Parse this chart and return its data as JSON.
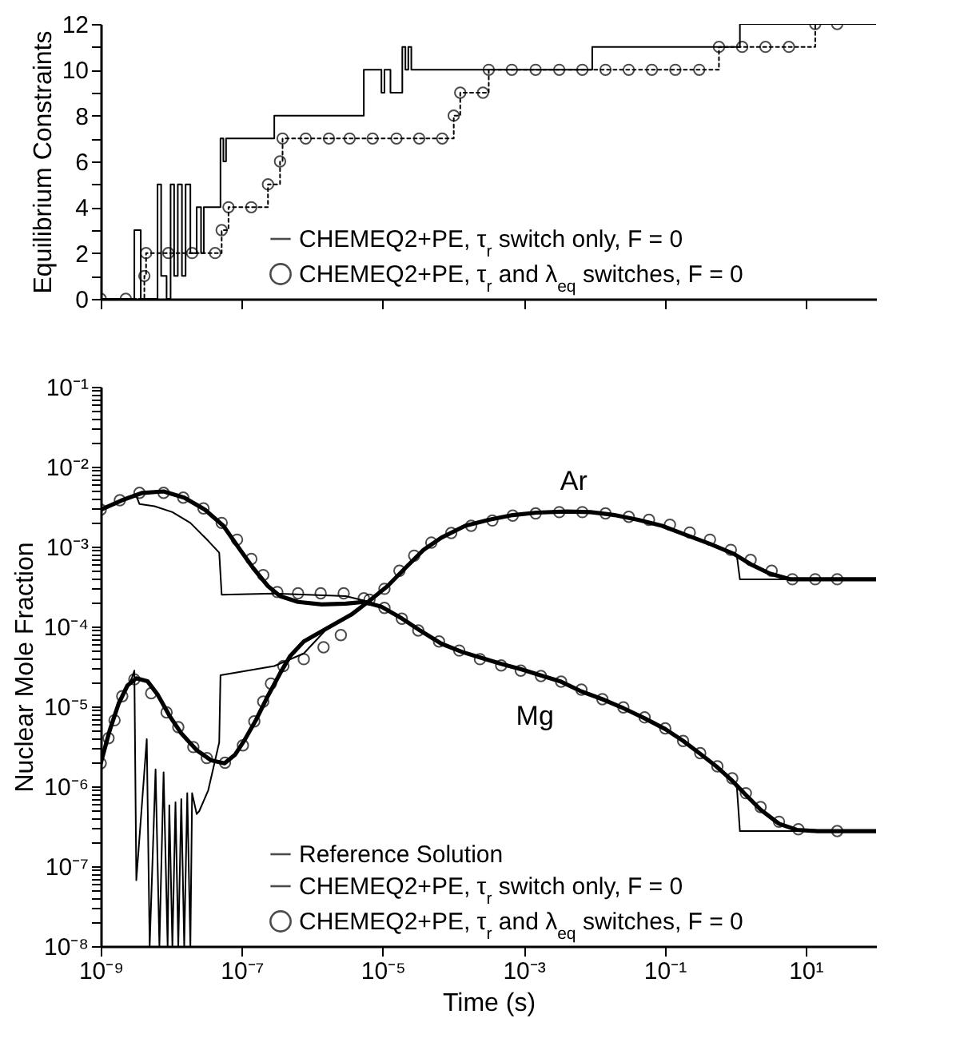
{
  "chart_data": [
    {
      "type": "step",
      "ylabel": "Equilibrium Constraints",
      "log": "x",
      "legend": "bottom right",
      "tick_labels": "y",
      "xlim": [
        1e-09,
        100
      ],
      "xticks": [
        {
          "value": 1e-09,
          "label": null
        },
        {
          "value": 1e-07,
          "label": null
        },
        {
          "value": 1e-05,
          "label": null
        },
        {
          "value": 0.001,
          "label": null
        },
        {
          "value": 0.1,
          "label": null
        },
        {
          "value": 10,
          "label": null
        }
      ],
      "ylim": [
        0,
        12
      ],
      "yticks": [
        0,
        {
          "value": 1,
          "label": null
        },
        2,
        {
          "value": 3,
          "label": null
        },
        4,
        {
          "value": 5,
          "label": null
        },
        6,
        {
          "value": 7,
          "label": null
        },
        8,
        {
          "value": 9,
          "label": null
        },
        10,
        {
          "value": 11,
          "label": null
        },
        12
      ],
      "series": [
        {
          "name": "CHEMEQ2+PE, τ$_{r}$ switch only, F = 0",
          "color": "#000000",
          "line_style": "solid",
          "x": [
            1e-09,
            2.4e-09,
            3e-09,
            3.7e-09,
            6.4e-09,
            7.2e-09,
            8.6e-09,
            9.8e-09,
            1.1e-08,
            1.24e-08,
            1.42e-08,
            1.6e-08,
            1.87e-08,
            2.3e-08,
            2.65e-08,
            2.9e-08,
            4.2e-08,
            5e-08,
            5.5e-08,
            6e-08,
            2.6e-07,
            2.9e-07,
            4.6e-06,
            5.4e-06,
            9.1e-06,
            9.6e-06,
            1.06e-05,
            1.29e-05,
            1.73e-05,
            1.9e-05,
            2.1e-05,
            2.31e-05,
            2.55e-05,
            0.0089,
            0.0094,
            1.06,
            1.17,
            100
          ],
          "values": [
            0,
            0,
            3,
            0,
            5,
            1,
            0,
            5,
            1,
            5,
            1,
            5,
            2,
            4,
            2,
            4,
            4,
            7,
            6,
            7,
            7,
            8,
            8,
            10,
            10,
            9,
            10,
            9,
            9,
            11,
            10,
            11,
            10,
            10,
            11,
            11,
            12,
            12
          ]
        },
        {
          "name": "CHEMEQ2+PE, τ$_{r}$ and λ$_{eq}$ switches, F = 0",
          "color": "#000000",
          "line_style": "dotted",
          "marker": "circle",
          "x": [
            1e-09,
            2.27e-09,
            4.16e-09,
            4.4e-09,
            9.1e-09,
            1.98e-08,
            4.2e-08,
            5.2e-08,
            6.5e-08,
            1.37e-07,
            2.36e-07,
            3.5e-07,
            3.8e-07,
            8.1e-07,
            1.73e-06,
            3.4e-06,
            7.2e-06,
            1.57e-05,
            3.3e-05,
            7e-05,
            0.000102,
            0.000126,
            0.000265,
            0.00032,
            0.00068,
            0.00148,
            0.0032,
            0.0068,
            0.0145,
            0.031,
            0.066,
            0.142,
            0.31,
            0.59,
            1.26,
            2.7,
            5.8,
            13.7,
            28.1
          ],
          "values": [
            0,
            0,
            1,
            2,
            2,
            2,
            2,
            3,
            4,
            4,
            5,
            6,
            7,
            7,
            7,
            7,
            7,
            7,
            7,
            7,
            8,
            9,
            9,
            10,
            10,
            10,
            10,
            10,
            10,
            10,
            10,
            10,
            10,
            11,
            11,
            11,
            11,
            12,
            12
          ]
        }
      ]
    },
    {
      "type": "line",
      "xlabel": "Time (s)",
      "ylabel": "Nuclear Mole Fraction",
      "log": "xy",
      "legend": "bottom right",
      "xlim": [
        1e-09,
        100
      ],
      "xticks": [
        {
          "value": 1e-09,
          "label": "10⁻⁹"
        },
        {
          "value": 1e-07,
          "label": "10⁻⁷"
        },
        {
          "value": 1e-05,
          "label": "10⁻⁵"
        },
        {
          "value": 0.001,
          "label": "10⁻³"
        },
        {
          "value": 0.1,
          "label": "10⁻¹"
        },
        {
          "value": 10,
          "label": "10¹"
        }
      ],
      "ylim": [
        1e-08,
        0.1
      ],
      "yticks": [
        {
          "value": 1e-08,
          "label": "10⁻⁸"
        },
        {
          "value": 2e-08,
          "label": null
        },
        {
          "value": 3e-08,
          "label": null
        },
        {
          "value": 4e-08,
          "label": null
        },
        {
          "value": 5e-08,
          "label": null
        },
        {
          "value": 6e-08,
          "label": null
        },
        {
          "value": 7e-08,
          "label": null
        },
        {
          "value": 8e-08,
          "label": null
        },
        {
          "value": 9e-08,
          "label": null
        },
        {
          "value": 1e-07,
          "label": "10⁻⁷"
        },
        {
          "value": 2e-07,
          "label": null
        },
        {
          "value": 3e-07,
          "label": null
        },
        {
          "value": 4e-07,
          "label": null
        },
        {
          "value": 5e-07,
          "label": null
        },
        {
          "value": 6e-07,
          "label": null
        },
        {
          "value": 7e-07,
          "label": null
        },
        {
          "value": 8e-07,
          "label": null
        },
        {
          "value": 9e-07,
          "label": null
        },
        {
          "value": 1e-06,
          "label": "10⁻⁶"
        },
        {
          "value": 2e-06,
          "label": null
        },
        {
          "value": 3e-06,
          "label": null
        },
        {
          "value": 4e-06,
          "label": null
        },
        {
          "value": 5e-06,
          "label": null
        },
        {
          "value": 6e-06,
          "label": null
        },
        {
          "value": 7e-06,
          "label": null
        },
        {
          "value": 8e-06,
          "label": null
        },
        {
          "value": 9e-06,
          "label": null
        },
        {
          "value": 1e-05,
          "label": "10⁻⁵"
        },
        {
          "value": 2e-05,
          "label": null
        },
        {
          "value": 3e-05,
          "label": null
        },
        {
          "value": 4e-05,
          "label": null
        },
        {
          "value": 5e-05,
          "label": null
        },
        {
          "value": 6e-05,
          "label": null
        },
        {
          "value": 7e-05,
          "label": null
        },
        {
          "value": 8e-05,
          "label": null
        },
        {
          "value": 9e-05,
          "label": null
        },
        {
          "value": 0.0001,
          "label": "10⁻⁴"
        },
        {
          "value": 0.0002,
          "label": null
        },
        {
          "value": 0.0003,
          "label": null
        },
        {
          "value": 0.0004,
          "label": null
        },
        {
          "value": 0.0005,
          "label": null
        },
        {
          "value": 0.0006,
          "label": null
        },
        {
          "value": 0.0007,
          "label": null
        },
        {
          "value": 0.0008,
          "label": null
        },
        {
          "value": 0.0009,
          "label": null
        },
        {
          "value": 0.001,
          "label": "10⁻³"
        },
        {
          "value": 0.002,
          "label": null
        },
        {
          "value": 0.003,
          "label": null
        },
        {
          "value": 0.004,
          "label": null
        },
        {
          "value": 0.005,
          "label": null
        },
        {
          "value": 0.006,
          "label": null
        },
        {
          "value": 0.007,
          "label": null
        },
        {
          "value": 0.008,
          "label": null
        },
        {
          "value": 0.009,
          "label": null
        },
        {
          "value": 0.01,
          "label": "10⁻²"
        },
        {
          "value": 0.02,
          "label": null
        },
        {
          "value": 0.03,
          "label": null
        },
        {
          "value": 0.04,
          "label": null
        },
        {
          "value": 0.05,
          "label": null
        },
        {
          "value": 0.06,
          "label": null
        },
        {
          "value": 0.07,
          "label": null
        },
        {
          "value": 0.08,
          "label": null
        },
        {
          "value": 0.09,
          "label": null
        },
        {
          "value": 0.1,
          "label": "10⁻¹"
        }
      ],
      "annotations": [
        "Ar",
        "Mg"
      ],
      "series": [
        {
          "name": "Reference Solution",
          "color": "#000000",
          "x": [
            1e-09,
            2e-09,
            3.9e-09,
            7.8e-09,
            1.53e-08,
            3e-08,
            5.5e-08,
            8.9e-08,
            1.45e-07,
            2.36e-07,
            3.5e-07,
            6.3e-07,
            1.37e-06,
            3e-06,
            5.4e-06,
            9.6e-06,
            1.9e-05,
            3.4e-05,
            6.8e-05,
            0.000134,
            0.00024,
            0.00048,
            0.00094,
            0.00187,
            0.0034,
            0.0066,
            0.0131,
            0.026,
            0.052,
            0.102,
            0.183,
            0.33,
            0.54,
            0.87,
            1.42,
            2.3,
            4.2,
            7.5,
            14.8,
            100
          ],
          "values": [
            0.0029,
            0.0038,
            0.0047,
            0.0049,
            0.0041,
            0.0029,
            0.00182,
            0.00099,
            0.00054,
            0.00032,
            0.00024,
            0.000203,
            0.000189,
            0.000193,
            0.000203,
            0.000177,
            0.000125,
            8.9e-05,
            6.1e-05,
            4.8e-05,
            4.1e-05,
            3.4e-05,
            2.9e-05,
            2.4e-05,
            2.04e-05,
            1.54e-05,
            1.23e-05,
            9.5e-06,
            7.1e-06,
            5.2e-06,
            3.7e-06,
            2.5e-06,
            1.78e-06,
            1.22e-06,
            7.8e-07,
            5.1e-07,
            3.4e-07,
            2.85e-07,
            2.75e-07,
            2.75e-07
          ]
        },
        {
          "color": "#000000",
          "x": [
            1e-09,
            1.34e-09,
            1.8e-09,
            2.4e-09,
            3.2e-09,
            4.6e-09,
            6.4e-09,
            9.4e-09,
            1.39e-08,
            2.3e-08,
            3.7e-08,
            5.7e-08,
            8.1e-08,
            1.08e-07,
            1.6e-07,
            2.36e-07,
            3.5e-07,
            4.9e-07,
            7.6e-07,
            1.66e-06,
            3.6e-06,
            6.5e-06,
            1.17e-05,
            2.1e-05,
            3.8e-05,
            6.8e-05,
            0.000148,
            0.00032,
            0.0007,
            0.00153,
            0.0041,
            0.0089,
            0.0194,
            0.042,
            0.092,
            0.2,
            0.44,
            0.96,
            1.73,
            3.1,
            6.1,
            100
          ],
          "values": [
            1.94e-06,
            5e-06,
            1.09e-05,
            1.83e-05,
            2.25e-05,
            2.07e-05,
            1.41e-05,
            7.7e-06,
            4.6e-06,
            2.83e-06,
            2.11e-06,
            1.94e-06,
            2.5e-06,
            3.7e-06,
            6.8e-06,
            1.36e-05,
            2.59e-05,
            4.3e-05,
            6.5e-05,
            9.6e-05,
            0.000141,
            0.00021,
            0.00032,
            0.00054,
            0.00091,
            0.00129,
            0.00182,
            0.00216,
            0.00248,
            0.00266,
            0.00275,
            0.0027,
            0.00248,
            0.00216,
            0.00182,
            0.0014,
            0.00108,
            0.00081,
            0.00059,
            0.00046,
            0.00039,
            0.00039
          ]
        },
        {
          "name": "CHEMEQ2+PE, τ$_{r}$ switch only, F = 0",
          "color": "#000000",
          "x": [
            1e-09,
            2e-09,
            3.2e-09,
            3.55e-09,
            5.8e-09,
            1.04e-08,
            1.87e-08,
            3.35e-08,
            4.8e-08,
            5.2e-08,
            2.9e-07,
            3e-06,
            6.5e-06,
            9.6e-06,
            1.9e-05,
            3.4e-05,
            6.8e-05,
            0.000134,
            0.00024,
            0.00048,
            0.00094,
            0.00187,
            0.0034,
            0.0066,
            0.0131,
            0.026,
            0.052,
            0.102,
            0.183,
            0.33,
            0.54,
            0.87,
            1.06,
            1.17,
            100
          ],
          "values": [
            0.0029,
            0.0038,
            0.0043,
            0.0034,
            0.0032,
            0.0027,
            0.00198,
            0.00118,
            0.00084,
            0.00025,
            0.000258,
            0.00024,
            0.000203,
            0.000177,
            0.000125,
            8.9e-05,
            6.1e-05,
            4.8e-05,
            4.1e-05,
            3.4e-05,
            2.9e-05,
            2.4e-05,
            2.04e-05,
            1.54e-05,
            1.23e-05,
            9.5e-06,
            7.1e-06,
            5.2e-06,
            3.7e-06,
            2.5e-06,
            1.78e-06,
            1.22e-06,
            9.7e-07,
            2.75e-07,
            2.75e-07
          ]
        },
        {
          "color": "#000000",
          "x": [
            1e-09,
            1.8e-09,
            2.76e-09,
            3e-09,
            3.2e-09,
            4.5e-09,
            4.95e-09,
            6e-09,
            6.8e-09,
            7.8e-09,
            8.9e-09,
            9.4e-09,
            1.04e-08,
            1.15e-08,
            1.26e-08,
            1.39e-08,
            1.53e-08,
            1.69e-08,
            1.87e-08,
            1.98e-08,
            2.3e-08,
            2.5e-08,
            3.35e-08,
            4.8e-08,
            5e-08,
            2.9e-07,
            7.6e-07,
            1.66e-06,
            3.6e-06,
            6.5e-06,
            1.17e-05,
            2.1e-05,
            3.8e-05,
            6.8e-05,
            0.000148,
            0.00032,
            0.0007,
            0.00153,
            0.0041,
            0.0089,
            0.0194,
            0.042,
            0.092,
            0.2,
            0.44,
            0.96,
            1.06,
            1.17,
            100
          ],
          "values": [
            1.94e-06,
            1.09e-05,
            2.25e-05,
            2.8e-05,
            6.7e-08,
            3.9e-06,
            1e-08,
            1.63e-06,
            1e-08,
            1.5e-06,
            1e-08,
            5.8e-07,
            1e-08,
            6.3e-07,
            1e-08,
            6.9e-07,
            1e-08,
            8.2e-07,
            1e-08,
            8.2e-07,
            4.5e-07,
            4.9e-07,
            8.9e-07,
            3.55e-06,
            2.45e-05,
            3.2e-05,
            4.6e-05,
            9.6e-05,
            0.000141,
            0.00021,
            0.00032,
            0.00054,
            0.00091,
            0.00129,
            0.00182,
            0.00216,
            0.00248,
            0.00266,
            0.00275,
            0.0027,
            0.00248,
            0.00216,
            0.00182,
            0.0014,
            0.00108,
            0.00081,
            0.00076,
            0.00039,
            0.00039
          ]
        },
        {
          "name": "CHEMEQ2+PE, τ$_{r}$ and λ$_{eq}$ switches, F = 0",
          "type": "scatter",
          "marker": "circle",
          "color": "#000000",
          "x": [
            1e-09,
            1.87e-09,
            3.55e-09,
            7.8e-09,
            1.48e-08,
            2.87e-08,
            5.2e-08,
            8.6e-08,
            1.37e-07,
            2.02e-07,
            3.2e-07,
            6.3e-07,
            1.32e-06,
            2.8e-06,
            5.4e-06,
            1.06e-05,
            1.87e-05,
            3.2e-05,
            6.3e-05,
            0.000122,
            0.00024,
            0.00048,
            0.00091,
            0.00176,
            0.0034,
            0.0066,
            0.0131,
            0.026,
            0.052,
            0.102,
            0.183,
            0.32,
            0.56,
            0.91,
            1.42,
            2.3,
            4.2,
            7.9,
            28.1
          ],
          "values": [
            0.0029,
            0.0038,
            0.0047,
            0.0047,
            0.0041,
            0.003,
            0.00198,
            0.00122,
            0.0007,
            0.00044,
            0.00027,
            0.00026,
            0.00026,
            0.00026,
            0.000225,
            0.000171,
            0.000125,
            8.9e-05,
            6.5e-05,
            5e-05,
            3.9e-05,
            3.25e-05,
            2.8e-05,
            2.4e-05,
            2.04e-05,
            1.62e-05,
            1.23e-05,
            9.7e-06,
            7.3e-06,
            5.3e-06,
            3.7e-06,
            2.6e-06,
            1.78e-06,
            1.26e-06,
            8.2e-07,
            5.5e-07,
            3.6e-07,
            2.9e-07,
            2.75e-07
          ]
        },
        {
          "type": "scatter",
          "marker": "circle",
          "color": "#000000",
          "x": [
            1e-09,
            1.29e-09,
            1.57e-09,
            2.02e-09,
            3e-09,
            5.2e-09,
            8.6e-09,
            1.26e-08,
            2.06e-08,
            3.2e-08,
            5.8e-08,
            1.04e-07,
            1.51e-07,
            2.02e-07,
            2.6e-07,
            3.9e-07,
            7.6e-07,
            1.45e-06,
            2.55e-06,
            6.5e-06,
            1.06e-05,
            1.73e-05,
            2.8e-05,
            4.9e-05,
            9.4e-05,
            0.00018,
            0.00036,
            0.0007,
            0.00148,
            0.0032,
            0.0068,
            0.0145,
            0.031,
            0.06,
            0.119,
            0.227,
            0.44,
            0.87,
            1.66,
            3.3,
            6.5,
            13.7,
            28.1
          ],
          "values": [
            1.94e-06,
            4e-06,
            6.7e-06,
            1.34e-05,
            2.18e-05,
            1.46e-05,
            8.4e-06,
            5.5e-06,
            3.1e-06,
            2.26e-06,
            1.97e-06,
            3.25e-06,
            6.5e-06,
            1.15e-05,
            1.93e-05,
            3.2e-05,
            3.9e-05,
            5.5e-05,
            7.8e-05,
            0.000217,
            0.000296,
            0.000498,
            0.00077,
            0.00112,
            0.00148,
            0.00182,
            0.00212,
            0.00244,
            0.0026,
            0.0027,
            0.0027,
            0.0026,
            0.00236,
            0.00216,
            0.00188,
            0.0015,
            0.00122,
            0.00091,
            0.00068,
            0.000498,
            0.00039,
            0.00039,
            0.00039
          ]
        }
      ]
    }
  ]
}
